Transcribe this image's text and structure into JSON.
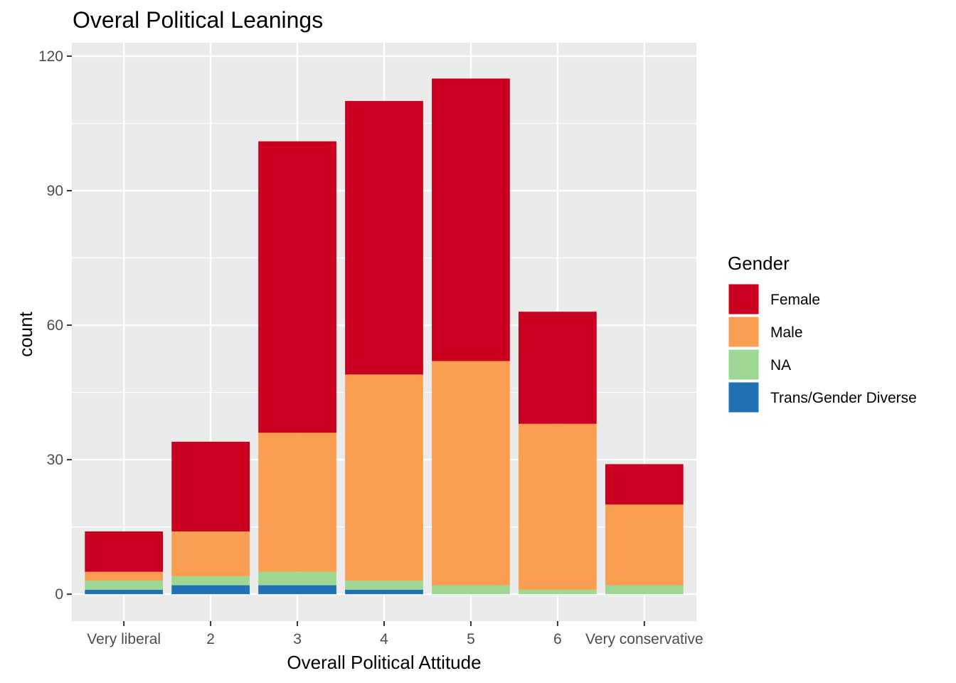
{
  "chart_data": {
    "type": "bar",
    "stacked": true,
    "title": "Overal Political Leanings",
    "xlabel": "Overall Political Attitude",
    "ylabel": "count",
    "ylim": [
      -6,
      123
    ],
    "yticks": [
      0,
      30,
      60,
      90,
      120
    ],
    "grid": true,
    "legend_position": "right",
    "legend_title": "Gender",
    "categories": [
      "Very liberal",
      "2",
      "3",
      "4",
      "5",
      "6",
      "Very conservative"
    ],
    "series": [
      {
        "name": "Trans/Gender Diverse",
        "color": "#2171b5",
        "values": [
          1,
          2,
          2,
          1,
          0,
          0,
          0
        ]
      },
      {
        "name": "NA",
        "color": "#9ed793",
        "values": [
          2,
          2,
          3,
          2,
          2,
          1,
          2
        ]
      },
      {
        "name": "Male",
        "color": "#fa9f52",
        "values": [
          2,
          10,
          31,
          46,
          50,
          37,
          18
        ]
      },
      {
        "name": "Female",
        "color": "#ca0020",
        "values": [
          9,
          20,
          65,
          61,
          63,
          25,
          9
        ]
      }
    ],
    "legend_order": [
      "Female",
      "Male",
      "NA",
      "Trans/Gender Diverse"
    ]
  }
}
